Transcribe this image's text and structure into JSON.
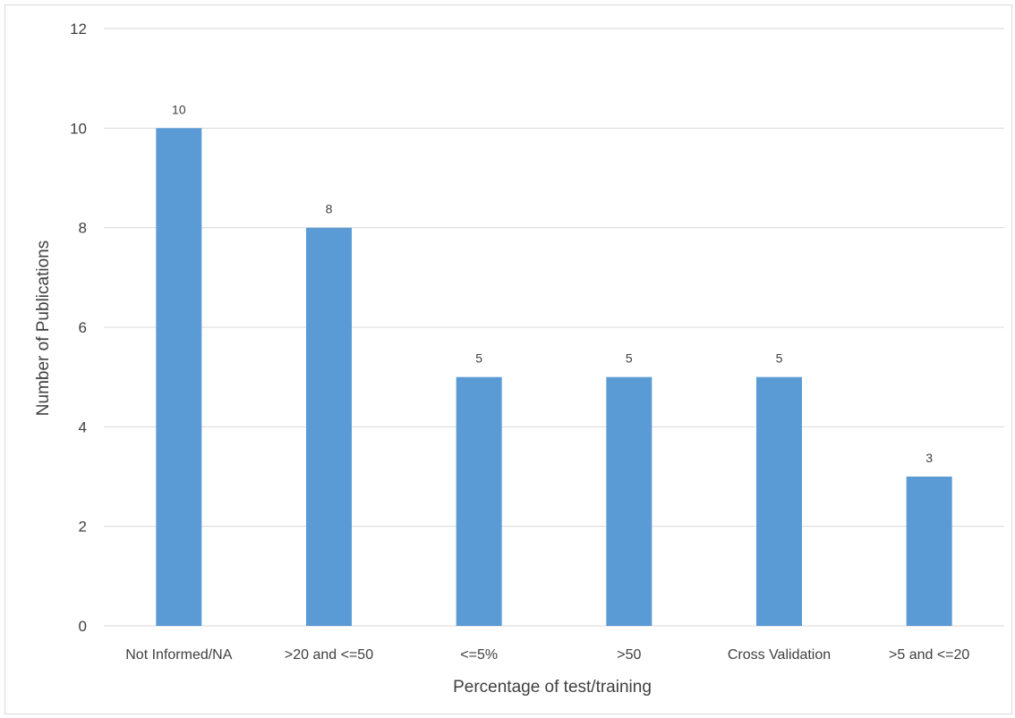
{
  "chart_data": {
    "type": "bar",
    "categories": [
      "Not Informed/NA",
      ">20 and <=50",
      "<=5%",
      ">50",
      "Cross Validation",
      ">5 and <=20"
    ],
    "values": [
      10,
      8,
      5,
      5,
      5,
      3
    ],
    "data_labels": [
      "10",
      "8",
      "5",
      "5",
      "5",
      "3"
    ],
    "xlabel": "Percentage of test/training",
    "ylabel": "Number of Publications",
    "ylim": [
      0,
      12
    ],
    "yticks": [
      "0",
      "2",
      "4",
      "6",
      "8",
      "10",
      "12"
    ],
    "grid": true,
    "legend": "none",
    "bar_color": "#5b9bd5",
    "grid_color": "#d9d9d9"
  }
}
